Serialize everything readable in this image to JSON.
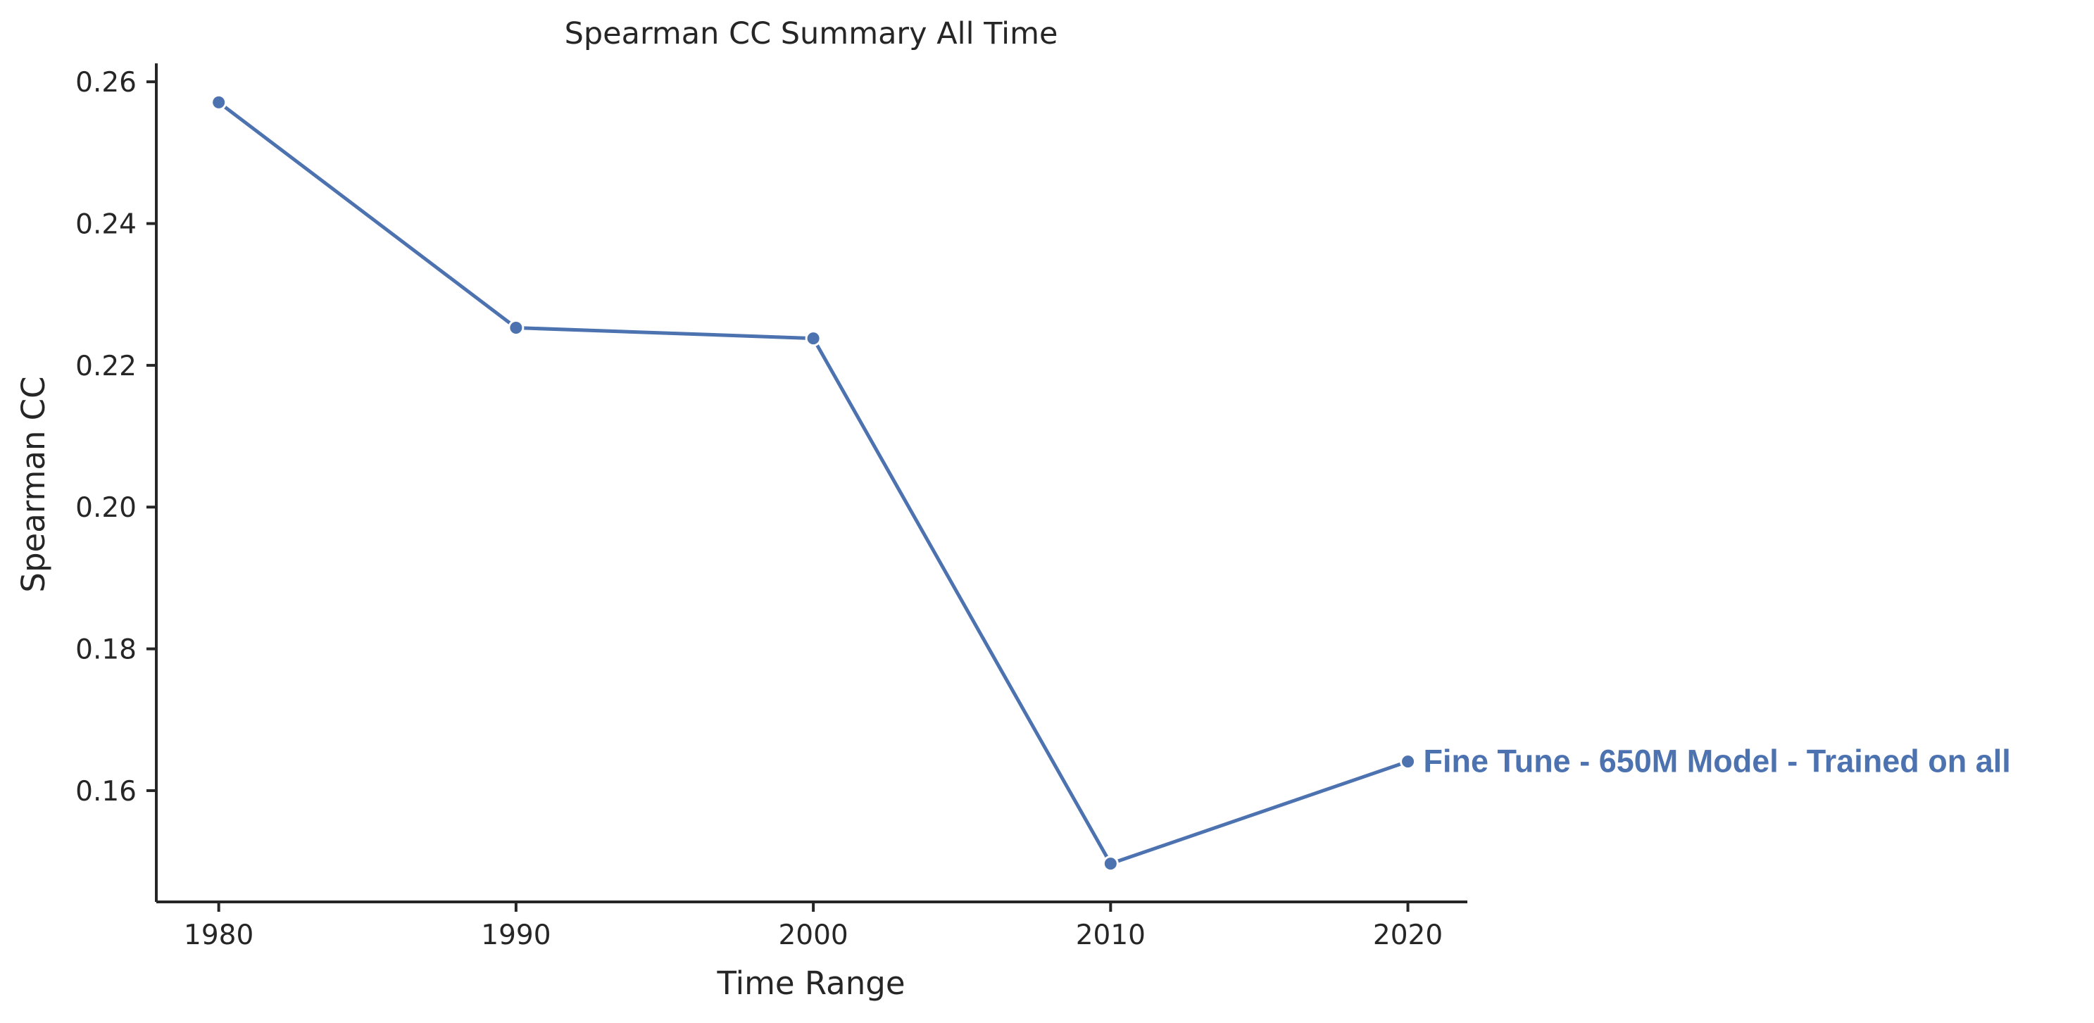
{
  "chart_data": {
    "type": "line",
    "title": "Spearman CC Summary All Time",
    "xlabel": "Time Range",
    "ylabel": "Spearman CC",
    "x": [
      1980,
      1990,
      2000,
      2010,
      2020
    ],
    "xticks": [
      "1980",
      "1990",
      "2000",
      "2010",
      "2020"
    ],
    "yticks": [
      "0.16",
      "0.18",
      "0.20",
      "0.22",
      "0.24",
      "0.26"
    ],
    "xlim": [
      1977.9,
      2022
    ],
    "ylim": [
      0.1443,
      0.2626
    ],
    "grid": false,
    "series": [
      {
        "name": "Fine Tune - 650M Model - Trained on all",
        "values": [
          0.2571,
          0.2253,
          0.2238,
          0.1497,
          0.1641
        ],
        "color": "#4c72b0",
        "marker": "circle"
      }
    ]
  }
}
